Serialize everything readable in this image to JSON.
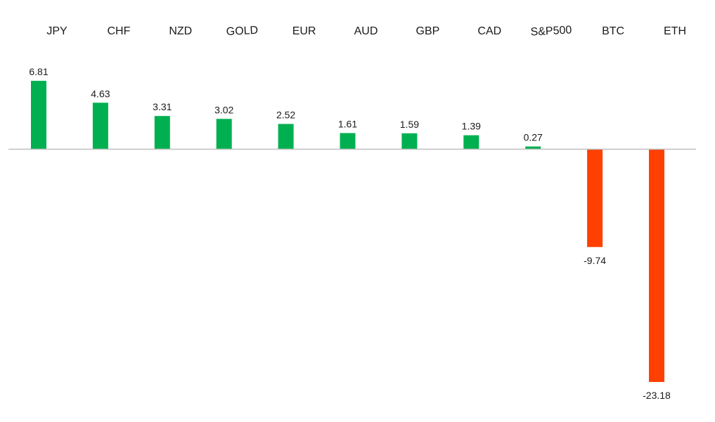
{
  "chart_data": {
    "type": "bar",
    "title": "",
    "xlabel": "",
    "ylabel": "",
    "categories": [
      "JPY",
      "CHF",
      "NZD",
      "GOLD",
      "EUR",
      "AUD",
      "GBP",
      "CAD",
      "S&P500",
      "BTC",
      "ETH"
    ],
    "values": [
      6.81,
      4.63,
      3.31,
      3.02,
      2.52,
      1.61,
      1.59,
      1.39,
      0.27,
      -9.74,
      -23.18
    ],
    "value_labels": [
      "6.81",
      "4.63",
      "3.31",
      "3.02",
      "2.52",
      "1.61",
      "1.59",
      "1.39",
      "0.27",
      "-9.74",
      "-23.18"
    ],
    "ylim": [
      -23.18,
      6.81
    ],
    "category_axis_position": "top",
    "grid": false,
    "legend": "none",
    "colors": {
      "positive": "#00b050",
      "negative": "#ff4000",
      "axis": "#bfbfbf"
    }
  }
}
